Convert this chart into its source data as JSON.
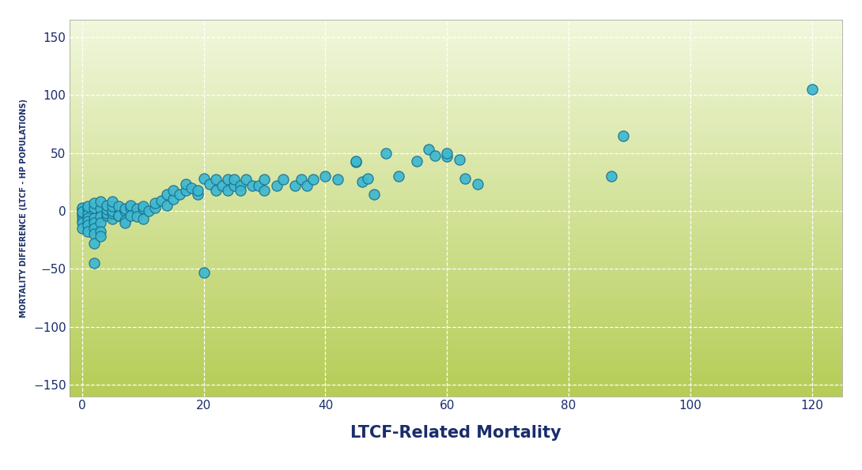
{
  "xlabel": "LTCF-Related Mortality",
  "ylabel": "MORTALITY DIFFERENCE (LTCF - HP POPULATIONS)",
  "xlim": [
    -2,
    125
  ],
  "ylim": [
    -160,
    165
  ],
  "xticks": [
    0,
    20,
    40,
    60,
    80,
    100,
    120
  ],
  "yticks": [
    -150,
    -100,
    -50,
    0,
    50,
    100,
    150
  ],
  "dot_color": "#3db8d0",
  "dot_edgecolor": "#1a7090",
  "dot_size": 90,
  "dot_lw": 0.9,
  "grid_color": "#ffffff",
  "grid_lw": 0.9,
  "xlabel_color": "#1a2d6b",
  "ylabel_color": "#1a2d6b",
  "tick_color": "#1a2d6b",
  "xlabel_fontsize": 15,
  "ylabel_fontsize": 7,
  "tick_fontsize": 11,
  "bg_top": "#f0f7dc",
  "bg_bottom": "#b5cc55",
  "outer_bg": "#ffffff",
  "x_data": [
    0,
    0,
    0,
    0,
    0,
    0,
    0,
    0,
    0,
    1,
    1,
    1,
    1,
    1,
    1,
    1,
    2,
    2,
    2,
    2,
    2,
    2,
    2,
    2,
    3,
    3,
    3,
    3,
    3,
    3,
    4,
    4,
    4,
    4,
    5,
    5,
    5,
    5,
    5,
    6,
    6,
    6,
    7,
    7,
    7,
    7,
    8,
    8,
    8,
    9,
    9,
    10,
    10,
    10,
    11,
    12,
    12,
    13,
    14,
    14,
    15,
    15,
    16,
    17,
    17,
    18,
    19,
    19,
    20,
    20,
    21,
    22,
    22,
    23,
    24,
    24,
    25,
    25,
    26,
    26,
    27,
    28,
    29,
    30,
    30,
    32,
    33,
    35,
    36,
    37,
    38,
    40,
    42,
    45,
    45,
    46,
    47,
    48,
    50,
    52,
    55,
    57,
    58,
    60,
    60,
    62,
    63,
    65,
    87,
    89,
    120
  ],
  "y_data": [
    0,
    2,
    -3,
    -5,
    -8,
    -10,
    -15,
    3,
    -1,
    1,
    -3,
    -6,
    -9,
    -12,
    -18,
    4,
    -6,
    -10,
    -15,
    -20,
    -28,
    3,
    7,
    -45,
    2,
    -5,
    -10,
    -18,
    -22,
    8,
    -4,
    -2,
    1,
    5,
    -7,
    -2,
    0,
    4,
    8,
    -4,
    4,
    -4,
    0,
    2,
    -8,
    -10,
    3,
    5,
    -4,
    2,
    -5,
    2,
    -7,
    4,
    0,
    3,
    7,
    9,
    5,
    14,
    10,
    18,
    14,
    18,
    23,
    20,
    14,
    18,
    -53,
    28,
    23,
    18,
    27,
    22,
    18,
    27,
    22,
    27,
    22,
    18,
    27,
    22,
    22,
    27,
    18,
    22,
    27,
    22,
    27,
    22,
    27,
    30,
    27,
    42,
    43,
    25,
    28,
    14,
    50,
    30,
    43,
    53,
    48,
    47,
    50,
    44,
    28,
    23,
    30,
    65,
    105
  ]
}
